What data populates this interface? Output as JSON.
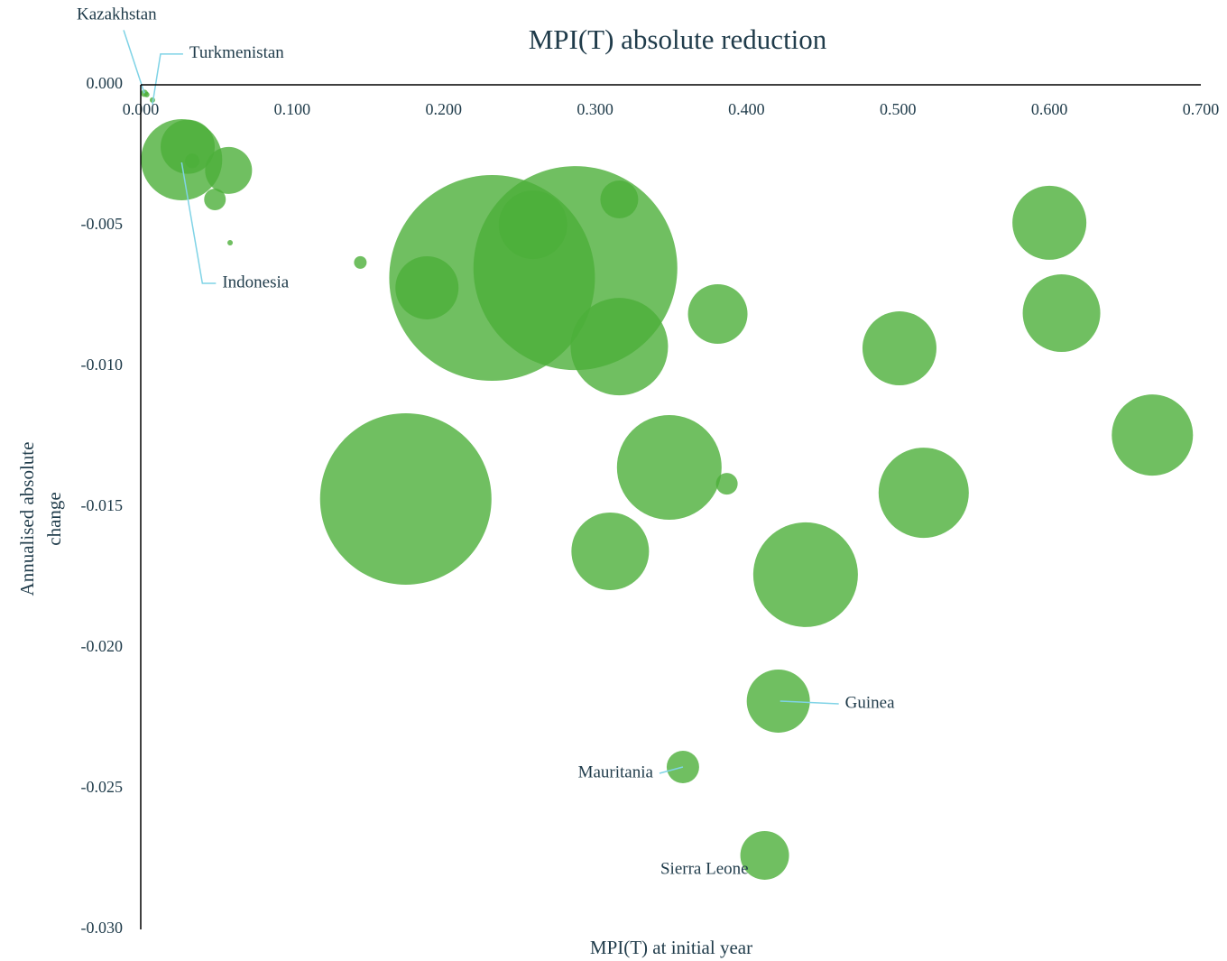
{
  "chart_data": {
    "type": "bubble",
    "title": "MPI(T) absolute reduction",
    "xlabel": "MPI(T) at initial year",
    "ylabel": "Annualised absolute change",
    "color": "#4caf3a",
    "x": [
      0.0024,
      0.004,
      0.0077,
      0.027,
      0.031,
      0.034,
      0.058,
      0.049,
      0.059,
      0.145,
      0.189,
      0.232,
      0.259,
      0.287,
      0.316,
      0.316,
      0.381,
      0.175,
      0.349,
      0.387,
      0.31,
      0.439,
      0.501,
      0.517,
      0.6,
      0.608,
      0.668,
      0.421,
      0.358,
      0.412
    ],
    "y": [
      -0.0003,
      -0.00035,
      -0.00054,
      -0.00266,
      -0.0022,
      -0.0027,
      -0.00304,
      -0.00407,
      -0.00561,
      -0.00631,
      -0.00721,
      -0.00686,
      -0.00497,
      -0.00651,
      -0.00407,
      -0.0093,
      -0.00814,
      -0.01471,
      -0.01359,
      -0.01417,
      -0.01657,
      -0.0174,
      -0.00936,
      -0.01449,
      -0.0049,
      -0.00811,
      -0.01244,
      -0.02189,
      -0.02423,
      -0.02737
    ],
    "sizes": [
      16,
      9,
      9,
      2025,
      900,
      64,
      676,
      144,
      9,
      49,
      1225,
      12996,
      1444,
      12769,
      441,
      2916,
      1089,
      9025,
      3364,
      144,
      1849,
      3364,
      1681,
      2500,
      1681,
      1849,
      2025,
      1225,
      324,
      729
    ],
    "labels": [
      "Kazakhstan",
      null,
      "Turkmenistan",
      "Indonesia",
      null,
      null,
      null,
      null,
      null,
      null,
      null,
      null,
      null,
      null,
      null,
      null,
      null,
      null,
      null,
      null,
      null,
      null,
      null,
      null,
      null,
      null,
      null,
      "Guinea",
      "Mauritania",
      "Sierra Leone"
    ],
    "xlim": [
      0,
      0.7
    ],
    "ylim": [
      -0.03,
      0
    ],
    "xticks": [
      {
        "value": 0,
        "label": "0.000"
      },
      {
        "value": 0.1,
        "label": "0.100"
      },
      {
        "value": 0.2,
        "label": "0.200"
      },
      {
        "value": 0.3,
        "label": "0.300"
      },
      {
        "value": 0.4,
        "label": "0.400"
      },
      {
        "value": 0.5,
        "label": "0.500"
      },
      {
        "value": 0.6,
        "label": "0.600"
      },
      {
        "value": 0.7,
        "label": "0.700"
      }
    ],
    "yticks": [
      {
        "value": 0,
        "label": "0.000"
      },
      {
        "value": -0.005,
        "label": "-0.005"
      },
      {
        "value": -0.01,
        "label": "-0.010"
      },
      {
        "value": -0.015,
        "label": "-0.015"
      },
      {
        "value": -0.02,
        "label": "-0.020"
      },
      {
        "value": -0.025,
        "label": "-0.025"
      },
      {
        "value": -0.03,
        "label": "-0.030"
      }
    ]
  }
}
